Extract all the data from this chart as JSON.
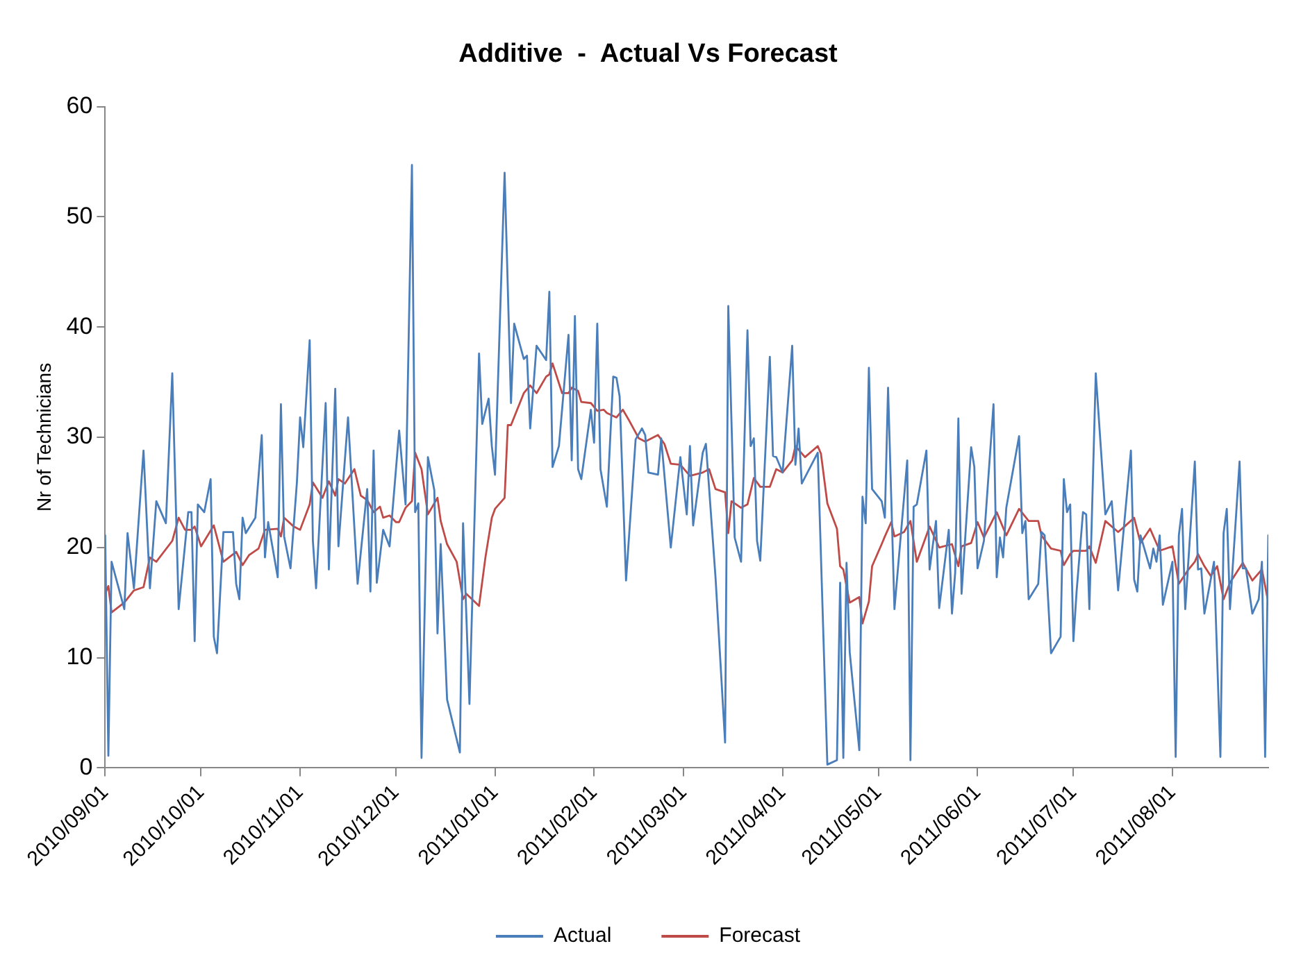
{
  "chart_data": {
    "type": "line",
    "title": "Additive  -  Actual Vs Forecast",
    "ylabel": "Nr of Technicians",
    "xlim": [
      "2010-09-01",
      "2011-08-31"
    ],
    "xticks": [
      {
        "value": "2010-09-01",
        "label": "2010/09/01"
      },
      {
        "value": "2010-10-01",
        "label": "2010/10/01"
      },
      {
        "value": "2010-11-01",
        "label": "2010/11/01"
      },
      {
        "value": "2010-12-01",
        "label": "2010/12/01"
      },
      {
        "value": "2011-01-01",
        "label": "2011/01/01"
      },
      {
        "value": "2011-02-01",
        "label": "2011/02/01"
      },
      {
        "value": "2011-03-01",
        "label": "2011/03/01"
      },
      {
        "value": "2011-04-01",
        "label": "2011/04/01"
      },
      {
        "value": "2011-05-01",
        "label": "2011/05/01"
      },
      {
        "value": "2011-06-01",
        "label": "2011/06/01"
      },
      {
        "value": "2011-07-01",
        "label": "2011/07/01"
      },
      {
        "value": "2011-08-01",
        "label": "2011/08/01"
      }
    ],
    "ylim": [
      0,
      60
    ],
    "yticks": [
      0,
      10,
      20,
      30,
      40,
      50,
      60
    ],
    "grid": false,
    "legend": "bottom",
    "marker": "none",
    "line_style": "solid",
    "series": [
      {
        "name": "Actual",
        "color": "#4a7ebb",
        "x": [
          "2010-09-01",
          "2010-09-02",
          "2010-09-03",
          "2010-09-07",
          "2010-09-08",
          "2010-09-10",
          "2010-09-13",
          "2010-09-15",
          "2010-09-17",
          "2010-09-20",
          "2010-09-22",
          "2010-09-24",
          "2010-09-27",
          "2010-09-28",
          "2010-09-29",
          "2010-09-30",
          "2010-10-02",
          "2010-10-04",
          "2010-10-05",
          "2010-10-06",
          "2010-10-08",
          "2010-10-11",
          "2010-10-12",
          "2010-10-13",
          "2010-10-14",
          "2010-10-15",
          "2010-10-18",
          "2010-10-20",
          "2010-10-21",
          "2010-10-22",
          "2010-10-25",
          "2010-10-26",
          "2010-10-27",
          "2010-10-29",
          "2010-10-31",
          "2010-11-01",
          "2010-11-02",
          "2010-11-04",
          "2010-11-05",
          "2010-11-06",
          "2010-11-09",
          "2010-11-10",
          "2010-11-12",
          "2010-11-13",
          "2010-11-16",
          "2010-11-19",
          "2010-11-22",
          "2010-11-23",
          "2010-11-24",
          "2010-11-25",
          "2010-11-27",
          "2010-11-29",
          "2010-12-02",
          "2010-12-04",
          "2010-12-06",
          "2010-12-07",
          "2010-12-08",
          "2010-12-09",
          "2010-12-11",
          "2010-12-13",
          "2010-12-14",
          "2010-12-15",
          "2010-12-17",
          "2010-12-21",
          "2010-12-22",
          "2010-12-24",
          "2010-12-27",
          "2010-12-28",
          "2010-12-30",
          "2010-12-31",
          "2011-01-01",
          "2011-01-04",
          "2011-01-06",
          "2011-01-07",
          "2011-01-10",
          "2011-01-11",
          "2011-01-12",
          "2011-01-14",
          "2011-01-17",
          "2011-01-18",
          "2011-01-19",
          "2011-01-21",
          "2011-01-24",
          "2011-01-25",
          "2011-01-26",
          "2011-01-27",
          "2011-01-28",
          "2011-01-31",
          "2011-02-01",
          "2011-02-02",
          "2011-02-03",
          "2011-02-05",
          "2011-02-07",
          "2011-02-08",
          "2011-02-09",
          "2011-02-11",
          "2011-02-14",
          "2011-02-16",
          "2011-02-17",
          "2011-02-18",
          "2011-02-21",
          "2011-02-22",
          "2011-02-25",
          "2011-02-28",
          "2011-03-02",
          "2011-03-03",
          "2011-03-04",
          "2011-03-07",
          "2011-03-08",
          "2011-03-11",
          "2011-03-14",
          "2011-03-15",
          "2011-03-17",
          "2011-03-19",
          "2011-03-21",
          "2011-03-22",
          "2011-03-23",
          "2011-03-24",
          "2011-03-25",
          "2011-03-28",
          "2011-03-29",
          "2011-03-30",
          "2011-04-01",
          "2011-04-04",
          "2011-04-05",
          "2011-04-06",
          "2011-04-07",
          "2011-04-12",
          "2011-04-15",
          "2011-04-18",
          "2011-04-19",
          "2011-04-20",
          "2011-04-21",
          "2011-04-22",
          "2011-04-25",
          "2011-04-26",
          "2011-04-27",
          "2011-04-28",
          "2011-04-29",
          "2011-05-02",
          "2011-05-03",
          "2011-05-04",
          "2011-05-06",
          "2011-05-10",
          "2011-05-11",
          "2011-05-12",
          "2011-05-13",
          "2011-05-16",
          "2011-05-17",
          "2011-05-19",
          "2011-05-20",
          "2011-05-23",
          "2011-05-24",
          "2011-05-25",
          "2011-05-26",
          "2011-05-27",
          "2011-05-30",
          "2011-05-31",
          "2011-06-01",
          "2011-06-03",
          "2011-06-06",
          "2011-06-07",
          "2011-06-08",
          "2011-06-09",
          "2011-06-10",
          "2011-06-14",
          "2011-06-15",
          "2011-06-16",
          "2011-06-17",
          "2011-06-20",
          "2011-06-21",
          "2011-06-22",
          "2011-06-24",
          "2011-06-27",
          "2011-06-28",
          "2011-06-29",
          "2011-06-30",
          "2011-07-01",
          "2011-07-02",
          "2011-07-04",
          "2011-07-05",
          "2011-07-06",
          "2011-07-08",
          "2011-07-11",
          "2011-07-13",
          "2011-07-15",
          "2011-07-19",
          "2011-07-20",
          "2011-07-21",
          "2011-07-22",
          "2011-07-25",
          "2011-07-26",
          "2011-07-27",
          "2011-07-28",
          "2011-07-29",
          "2011-08-01",
          "2011-08-02",
          "2011-08-03",
          "2011-08-04",
          "2011-08-05",
          "2011-08-08",
          "2011-08-09",
          "2011-08-10",
          "2011-08-11",
          "2011-08-14",
          "2011-08-16",
          "2011-08-17",
          "2011-08-18",
          "2011-08-19",
          "2011-08-22",
          "2011-08-23",
          "2011-08-24",
          "2011-08-26",
          "2011-08-28",
          "2011-08-29",
          "2011-08-30",
          "2011-08-31"
        ],
        "values": [
          21.1,
          1.1,
          18.7,
          14.4,
          21.3,
          16.3,
          28.8,
          16.3,
          24.2,
          22.2,
          35.8,
          14.4,
          23.2,
          23.2,
          11.5,
          23.9,
          23.2,
          26.2,
          11.9,
          10.4,
          21.4,
          21.4,
          16.7,
          15.3,
          22.7,
          21.3,
          22.7,
          30.2,
          19.1,
          22.3,
          17.3,
          33.0,
          21.0,
          18.1,
          25.9,
          31.8,
          29.1,
          38.8,
          20.6,
          16.3,
          33.1,
          18.0,
          34.4,
          20.1,
          31.8,
          16.7,
          25.3,
          16.0,
          28.8,
          16.8,
          21.6,
          20.1,
          30.6,
          23.9,
          54.7,
          23.2,
          24.0,
          0.9,
          28.2,
          25.2,
          12.2,
          20.3,
          6.2,
          1.4,
          22.2,
          5.8,
          37.6,
          31.2,
          33.5,
          29.2,
          26.6,
          54.0,
          33.1,
          40.3,
          37.1,
          37.4,
          30.8,
          38.3,
          37.0,
          43.2,
          27.3,
          29.2,
          39.3,
          27.9,
          41.0,
          27.1,
          26.2,
          32.5,
          29.5,
          40.3,
          27.1,
          23.7,
          35.5,
          35.4,
          33.7,
          17.0,
          29.8,
          30.8,
          30.2,
          26.8,
          26.6,
          29.9,
          20.0,
          28.2,
          23.0,
          29.2,
          22.0,
          28.6,
          29.4,
          17.3,
          2.3,
          41.9,
          20.9,
          18.7,
          39.7,
          29.2,
          29.9,
          20.6,
          18.8,
          37.3,
          28.3,
          28.2,
          26.8,
          38.3,
          27.5,
          30.8,
          25.8,
          28.6,
          0.3,
          0.7,
          16.8,
          0.9,
          18.6,
          10.5,
          1.6,
          24.6,
          22.2,
          36.3,
          25.3,
          24.2,
          22.7,
          34.5,
          14.4,
          27.9,
          0.7,
          23.7,
          23.9,
          28.8,
          18.0,
          22.4,
          14.5,
          21.6,
          14.0,
          17.7,
          31.7,
          15.8,
          29.1,
          27.3,
          18.1,
          20.6,
          33.0,
          17.3,
          20.9,
          19.1,
          23.6,
          30.1,
          21.3,
          22.4,
          15.3,
          16.7,
          21.4,
          21.1,
          10.4,
          11.9,
          26.2,
          23.2,
          23.9,
          11.5,
          16.0,
          23.2,
          23.0,
          14.4,
          35.8,
          23.0,
          24.2,
          16.1,
          28.8,
          17.1,
          16.0,
          21.1,
          18.1,
          19.9,
          18.7,
          21.1,
          14.8,
          18.7,
          1.0,
          21.1,
          23.5,
          14.4,
          27.8,
          18.0,
          18.1,
          14.0,
          18.7,
          1.0,
          21.3,
          23.5,
          14.4,
          27.8,
          18.1,
          18.1,
          14.0,
          15.3,
          18.7,
          1.0,
          21.1
        ]
      },
      {
        "name": "Forecast",
        "color": "#be4b48",
        "x": [
          "2010-09-01",
          "2010-09-02",
          "2010-09-03",
          "2010-09-07",
          "2010-09-10",
          "2010-09-13",
          "2010-09-15",
          "2010-09-17",
          "2010-09-22",
          "2010-09-24",
          "2010-09-26",
          "2010-09-28",
          "2010-09-29",
          "2010-10-01",
          "2010-10-05",
          "2010-10-08",
          "2010-10-12",
          "2010-10-14",
          "2010-10-16",
          "2010-10-19",
          "2010-10-21",
          "2010-10-25",
          "2010-10-26",
          "2010-10-27",
          "2010-10-30",
          "2010-11-01",
          "2010-11-04",
          "2010-11-05",
          "2010-11-08",
          "2010-11-10",
          "2010-11-12",
          "2010-11-13",
          "2010-11-15",
          "2010-11-18",
          "2010-11-20",
          "2010-11-22",
          "2010-11-24",
          "2010-11-26",
          "2010-11-27",
          "2010-11-29",
          "2010-12-01",
          "2010-12-02",
          "2010-12-04",
          "2010-12-06",
          "2010-12-07",
          "2010-12-09",
          "2010-12-11",
          "2010-12-14",
          "2010-12-15",
          "2010-12-17",
          "2010-12-20",
          "2010-12-22",
          "2010-12-23",
          "2010-12-27",
          "2010-12-29",
          "2010-12-31",
          "2011-01-01",
          "2011-01-04",
          "2011-01-05",
          "2011-01-06",
          "2011-01-10",
          "2011-01-12",
          "2011-01-14",
          "2011-01-17",
          "2011-01-18",
          "2011-01-19",
          "2011-01-22",
          "2011-01-24",
          "2011-01-25",
          "2011-01-27",
          "2011-01-28",
          "2011-01-31",
          "2011-02-02",
          "2011-02-04",
          "2011-02-05",
          "2011-02-08",
          "2011-02-10",
          "2011-02-12",
          "2011-02-15",
          "2011-02-17",
          "2011-02-21",
          "2011-02-23",
          "2011-02-25",
          "2011-02-28",
          "2011-03-03",
          "2011-03-07",
          "2011-03-09",
          "2011-03-11",
          "2011-03-14",
          "2011-03-15",
          "2011-03-16",
          "2011-03-19",
          "2011-03-21",
          "2011-03-23",
          "2011-03-25",
          "2011-03-28",
          "2011-03-30",
          "2011-04-01",
          "2011-04-04",
          "2011-04-05",
          "2011-04-08",
          "2011-04-12",
          "2011-04-13",
          "2011-04-15",
          "2011-04-18",
          "2011-04-19",
          "2011-04-20",
          "2011-04-22",
          "2011-04-25",
          "2011-04-26",
          "2011-04-28",
          "2011-04-29",
          "2011-05-02",
          "2011-05-03",
          "2011-05-05",
          "2011-05-06",
          "2011-05-09",
          "2011-05-11",
          "2011-05-13",
          "2011-05-17",
          "2011-05-20",
          "2011-05-24",
          "2011-05-26",
          "2011-05-27",
          "2011-05-30",
          "2011-06-01",
          "2011-06-03",
          "2011-06-07",
          "2011-06-10",
          "2011-06-14",
          "2011-06-17",
          "2011-06-20",
          "2011-06-21",
          "2011-06-24",
          "2011-06-27",
          "2011-06-28",
          "2011-06-30",
          "2011-07-01",
          "2011-07-05",
          "2011-07-06",
          "2011-07-08",
          "2011-07-11",
          "2011-07-15",
          "2011-07-17",
          "2011-07-20",
          "2011-07-22",
          "2011-07-25",
          "2011-07-28",
          "2011-08-01",
          "2011-08-03",
          "2011-08-06",
          "2011-08-08",
          "2011-08-09",
          "2011-08-11",
          "2011-08-13",
          "2011-08-15",
          "2011-08-17",
          "2011-08-19",
          "2011-08-23",
          "2011-08-26",
          "2011-08-29",
          "2011-08-31"
        ],
        "values": [
          15.8,
          16.5,
          14.1,
          15.0,
          16.1,
          16.4,
          19.1,
          18.7,
          20.6,
          22.7,
          21.6,
          21.6,
          21.9,
          20.1,
          22.0,
          18.7,
          19.6,
          18.4,
          19.3,
          19.9,
          21.6,
          21.7,
          21.0,
          22.7,
          21.9,
          21.6,
          23.9,
          25.9,
          24.5,
          26.0,
          24.7,
          26.2,
          25.8,
          27.1,
          24.7,
          24.3,
          23.2,
          23.7,
          22.7,
          22.9,
          22.3,
          22.3,
          23.6,
          24.2,
          28.6,
          27.1,
          23.0,
          24.5,
          22.4,
          20.3,
          18.7,
          15.3,
          15.8,
          14.7,
          19.1,
          22.7,
          23.5,
          24.5,
          31.1,
          31.1,
          34.0,
          34.7,
          34.0,
          35.5,
          35.7,
          36.7,
          34.0,
          34.0,
          34.5,
          34.2,
          33.2,
          33.1,
          32.4,
          32.5,
          32.2,
          31.8,
          32.5,
          31.5,
          29.9,
          29.6,
          30.2,
          29.4,
          27.6,
          27.5,
          26.5,
          26.8,
          27.1,
          25.3,
          25.0,
          21.3,
          24.2,
          23.6,
          23.9,
          26.3,
          25.5,
          25.5,
          27.1,
          26.8,
          27.9,
          29.2,
          28.2,
          29.2,
          28.5,
          24.0,
          21.7,
          18.3,
          18.0,
          15.0,
          15.5,
          13.1,
          15.1,
          18.3,
          20.3,
          21.0,
          22.3,
          21.0,
          21.4,
          22.4,
          18.7,
          21.9,
          20.0,
          20.3,
          18.3,
          20.1,
          20.4,
          22.3,
          20.9,
          23.2,
          21.1,
          23.5,
          22.4,
          22.4,
          21.1,
          19.9,
          19.7,
          18.4,
          19.4,
          19.7,
          19.7,
          20.1,
          18.6,
          22.4,
          21.4,
          21.9,
          22.7,
          20.4,
          21.7,
          19.7,
          20.1,
          16.7,
          18.0,
          18.7,
          19.4,
          18.3,
          17.4,
          18.3,
          15.3,
          16.8,
          18.6,
          17.0,
          18.0,
          15.0
        ]
      }
    ]
  }
}
